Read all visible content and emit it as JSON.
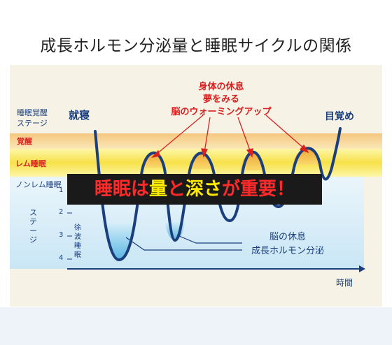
{
  "title": "成長ホルモン分泌量と睡眠サイクルの関係",
  "y_axis": {
    "heading_line1": "睡眠覚醒",
    "heading_line2": "ステージ",
    "awake": "覚醒",
    "rem": "レム睡眠",
    "nonrem": "ノンレム睡眠",
    "stage_label": "ステージ",
    "stage_ticks": [
      "1",
      "2",
      "3",
      "4"
    ],
    "deep_sleep": "徐波睡眠"
  },
  "x_axis": {
    "label": "時間"
  },
  "markers": {
    "bedtime": "就寝",
    "wake": "目覚め"
  },
  "rem_annotation": [
    "身体の休息",
    "夢をみる",
    "脳のウォーミングアップ"
  ],
  "deep_annotation": [
    "脳の休息",
    "成長ホルモン分泌"
  ],
  "banner": {
    "part1": "睡眠は",
    "part2": "量",
    "part3": "と",
    "part4": "深さ",
    "part5": "が重要！"
  },
  "colors": {
    "curve": "#1b3f7d",
    "awake_band": "#f6d79c",
    "rem_band": "#f8e45a",
    "deep_band": "#7fc8ea",
    "annotation_red": "#d92020",
    "banner_bg": "#1a1a1a",
    "banner_red": "#ff2a2a",
    "banner_yellow": "#ffea00",
    "label_blue": "#1b3f7d"
  }
}
